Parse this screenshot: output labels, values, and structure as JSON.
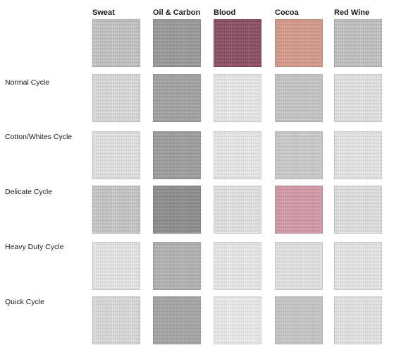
{
  "columns": [
    "Sweat",
    "Oil & Carbon",
    "Blood",
    "Cocoa",
    "Red Wine"
  ],
  "rows": [
    {
      "label": "",
      "swatch_colors": [
        "#c4c4c4",
        "#9a9a9a",
        "#8a4a5e",
        "#d99a8a",
        "#c2c2c2"
      ]
    },
    {
      "label": "Normal Cycle",
      "swatch_colors": [
        "#dcdcdc",
        "#a3a3a3",
        "#ececec",
        "#c8c8c8",
        "#e6e6e6"
      ]
    },
    {
      "label": "Cotton/Whites Cycle",
      "swatch_colors": [
        "#e4e4e4",
        "#9e9e9e",
        "#ebebeb",
        "#cdcdcd",
        "#e8e8e8"
      ]
    },
    {
      "label": "Delicate Cycle",
      "swatch_colors": [
        "#c8c8c8",
        "#8c8c8c",
        "#e6e6e6",
        "#d59aa8",
        "#e3e3e3"
      ]
    },
    {
      "label": "Heavy Duty Cycle",
      "swatch_colors": [
        "#e8e8e8",
        "#b3b3b3",
        "#ececec",
        "#e6e6e6",
        "#e9e9e9"
      ]
    },
    {
      "label": "Quick Cycle",
      "swatch_colors": [
        "#dcdcdc",
        "#a6a6a6",
        "#eeeeee",
        "#c9c9c9",
        "#e7e7e7"
      ]
    }
  ]
}
